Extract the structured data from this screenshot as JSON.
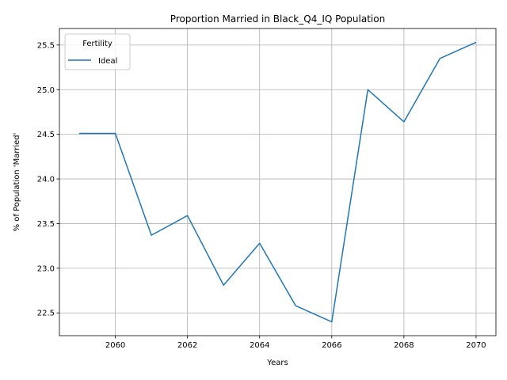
{
  "chart_data": {
    "type": "line",
    "title": "Proportion Married in Black_Q4_IQ Population",
    "xlabel": "Years",
    "ylabel": "% of Population 'Married'",
    "xlim": [
      2058.45,
      2070.55
    ],
    "ylim": [
      22.245,
      25.685
    ],
    "xticks": [
      2060,
      2062,
      2064,
      2066,
      2068,
      2070
    ],
    "yticks": [
      22.5,
      23.0,
      23.5,
      24.0,
      24.5,
      25.0,
      25.5
    ],
    "ytick_labels": [
      "22.5",
      "23.0",
      "23.5",
      "24.0",
      "24.5",
      "25.0",
      "25.5"
    ],
    "grid": true,
    "legend": {
      "title": "Fertility",
      "location": "upper left"
    },
    "series": [
      {
        "name": "Ideal",
        "color": "#1f77b4",
        "x": [
          2059,
          2060,
          2061,
          2062,
          2063,
          2064,
          2065,
          2066,
          2067,
          2068,
          2069,
          2070
        ],
        "y": [
          24.51,
          24.51,
          23.37,
          23.59,
          22.81,
          23.28,
          22.58,
          22.4,
          25.0,
          24.64,
          25.35,
          25.53
        ]
      }
    ]
  }
}
